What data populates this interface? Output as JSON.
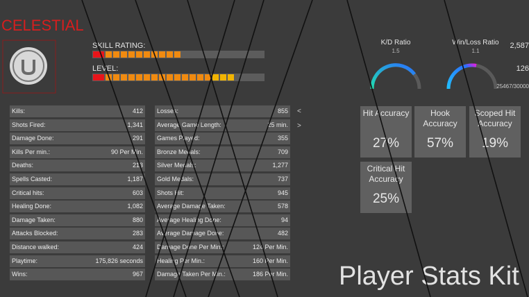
{
  "title": "CELESTIAL",
  "skill_rating": {
    "label": "SKILL RATING:",
    "value": "2,587"
  },
  "level": {
    "label": "LEVEL:",
    "value": "126",
    "progress": "25467/30000"
  },
  "ratios": [
    {
      "label": "K/D Ratio",
      "value": "1.5"
    },
    {
      "label": "Win/Loss Ratio",
      "value": "1.1"
    }
  ],
  "stats_left": [
    [
      "Kills:",
      "412"
    ],
    [
      "Shots Fired:",
      "1,341"
    ],
    [
      "Damage Done:",
      "291"
    ],
    [
      "Kills Per min.:",
      "90 Per Min."
    ],
    [
      "Deaths:",
      "213"
    ],
    [
      "Spells Casted:",
      "1,187"
    ],
    [
      "Critical hits:",
      "603"
    ],
    [
      "Healing Done:",
      "1,082"
    ],
    [
      "Damage Taken:",
      "880"
    ],
    [
      "Attacks Blocked:",
      "283"
    ],
    [
      "Distance walked:",
      "424"
    ],
    [
      "Playtime:",
      "175,826 seconds"
    ],
    [
      "Wins:",
      "967"
    ]
  ],
  "stats_right": [
    [
      "Losses:",
      "855"
    ],
    [
      "Average Game Length:",
      "25 min."
    ],
    [
      "Games Played:",
      "355"
    ],
    [
      "Bronze  Medals:",
      "709"
    ],
    [
      "Silver Medals:",
      "1,277"
    ],
    [
      "Gold Medals:",
      "737"
    ],
    [
      "Shots Hit:",
      "945"
    ],
    [
      "Average Damage Taken:",
      "578"
    ],
    [
      "Average Healing Done:",
      "94"
    ],
    [
      "Average Damage Done:",
      "482"
    ],
    [
      "Damage Done Per Min.:",
      "124 Per Min."
    ],
    [
      "Healing Per Min.:",
      "160 Per Min."
    ],
    [
      "Damage Taken Per Min.:",
      "186 Per Min."
    ]
  ],
  "nav": {
    "prev": "<",
    "next": ">"
  },
  "accuracy": [
    {
      "label": "Hit Accuracy",
      "value": "27%"
    },
    {
      "label": "Hook Accuracy",
      "value": "57%"
    },
    {
      "label": "Scoped Hit Accuracy",
      "value": "19%"
    },
    {
      "label": "Critical Hit Accuracy",
      "value": "25%"
    }
  ],
  "footer": "Player Stats Kit"
}
